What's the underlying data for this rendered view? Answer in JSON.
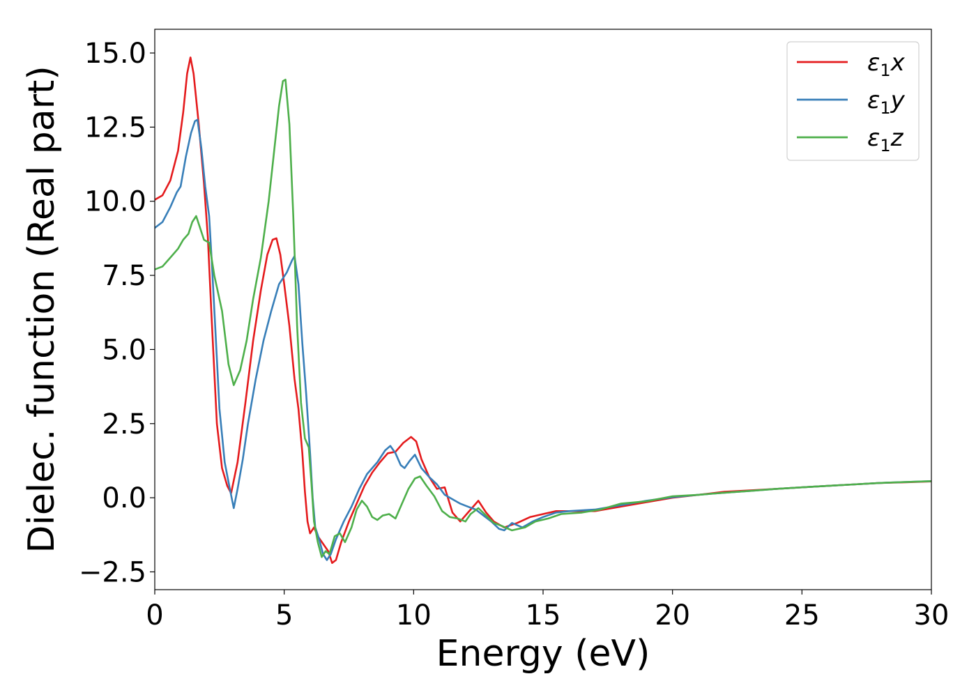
{
  "chart_data": {
    "type": "line",
    "xlabel": "Energy (eV)",
    "ylabel": "Dielec. function (Real part)",
    "xlim": [
      0,
      30
    ],
    "ylim": [
      -3.1,
      15.8
    ],
    "x_ticks": [
      {
        "value": 0,
        "label": "0"
      },
      {
        "value": 5,
        "label": "5"
      },
      {
        "value": 10,
        "label": "10"
      },
      {
        "value": 15,
        "label": "15"
      },
      {
        "value": 20,
        "label": "20"
      },
      {
        "value": 25,
        "label": "25"
      },
      {
        "value": 30,
        "label": "30"
      }
    ],
    "y_ticks": [
      {
        "value": -2.5,
        "label": "−2.5"
      },
      {
        "value": 0,
        "label": "0.0"
      },
      {
        "value": 2.5,
        "label": "2.5"
      },
      {
        "value": 5,
        "label": "5.0"
      },
      {
        "value": 7.5,
        "label": "7.5"
      },
      {
        "value": 10,
        "label": "10.0"
      },
      {
        "value": 12.5,
        "label": "12.5"
      },
      {
        "value": 15,
        "label": "15.0"
      }
    ],
    "grid": false,
    "legend_position": "top-right",
    "series": [
      {
        "name": "ε1x",
        "legend_main": "ε",
        "legend_sub": "1",
        "legend_tail": "x",
        "color": "#e41a1c",
        "points": [
          [
            0,
            10.05
          ],
          [
            0.3,
            10.2
          ],
          [
            0.6,
            10.7
          ],
          [
            0.9,
            11.7
          ],
          [
            1.1,
            13.0
          ],
          [
            1.25,
            14.3
          ],
          [
            1.38,
            14.85
          ],
          [
            1.5,
            14.3
          ],
          [
            1.7,
            12.6
          ],
          [
            1.9,
            10.6
          ],
          [
            2.05,
            8.8
          ],
          [
            2.2,
            6.0
          ],
          [
            2.4,
            2.5
          ],
          [
            2.6,
            1.0
          ],
          [
            2.8,
            0.4
          ],
          [
            2.95,
            0.15
          ],
          [
            3.2,
            1.2
          ],
          [
            3.5,
            3.2
          ],
          [
            3.8,
            5.3
          ],
          [
            4.1,
            7.0
          ],
          [
            4.35,
            8.2
          ],
          [
            4.55,
            8.7
          ],
          [
            4.7,
            8.75
          ],
          [
            4.85,
            8.2
          ],
          [
            5.0,
            7.2
          ],
          [
            5.2,
            5.8
          ],
          [
            5.4,
            4.0
          ],
          [
            5.55,
            3.0
          ],
          [
            5.7,
            1.5
          ],
          [
            5.8,
            0.2
          ],
          [
            5.9,
            -0.8
          ],
          [
            6.0,
            -1.2
          ],
          [
            6.15,
            -1.0
          ],
          [
            6.3,
            -1.3
          ],
          [
            6.5,
            -1.55
          ],
          [
            6.7,
            -1.8
          ],
          [
            6.85,
            -2.2
          ],
          [
            7.0,
            -2.1
          ],
          [
            7.2,
            -1.5
          ],
          [
            7.5,
            -0.8
          ],
          [
            7.8,
            -0.2
          ],
          [
            8.1,
            0.4
          ],
          [
            8.4,
            0.85
          ],
          [
            8.7,
            1.2
          ],
          [
            9.0,
            1.5
          ],
          [
            9.3,
            1.55
          ],
          [
            9.6,
            1.85
          ],
          [
            9.9,
            2.05
          ],
          [
            10.1,
            1.9
          ],
          [
            10.3,
            1.3
          ],
          [
            10.6,
            0.7
          ],
          [
            10.9,
            0.3
          ],
          [
            11.2,
            0.35
          ],
          [
            11.5,
            -0.5
          ],
          [
            11.8,
            -0.8
          ],
          [
            12.1,
            -0.5
          ],
          [
            12.5,
            -0.1
          ],
          [
            12.8,
            -0.5
          ],
          [
            13.1,
            -0.8
          ],
          [
            13.5,
            -1.0
          ],
          [
            14.0,
            -0.85
          ],
          [
            14.5,
            -0.65
          ],
          [
            15.0,
            -0.55
          ],
          [
            15.5,
            -0.45
          ],
          [
            16.0,
            -0.45
          ],
          [
            17.0,
            -0.45
          ],
          [
            18.0,
            -0.3
          ],
          [
            19.0,
            -0.15
          ],
          [
            20.0,
            0.0
          ],
          [
            21.0,
            0.1
          ],
          [
            22.0,
            0.2
          ],
          [
            23.0,
            0.25
          ],
          [
            24.0,
            0.3
          ],
          [
            25.0,
            0.35
          ],
          [
            26.0,
            0.4
          ],
          [
            27.0,
            0.45
          ],
          [
            28.0,
            0.5
          ],
          [
            29.0,
            0.52
          ],
          [
            30.0,
            0.55
          ]
        ]
      },
      {
        "name": "ε1y",
        "legend_main": "ε",
        "legend_sub": "1",
        "legend_tail": "y",
        "color": "#377eb8",
        "points": [
          [
            0,
            9.1
          ],
          [
            0.3,
            9.3
          ],
          [
            0.6,
            9.8
          ],
          [
            0.85,
            10.3
          ],
          [
            1.0,
            10.5
          ],
          [
            1.2,
            11.5
          ],
          [
            1.4,
            12.3
          ],
          [
            1.55,
            12.7
          ],
          [
            1.65,
            12.75
          ],
          [
            1.8,
            11.8
          ],
          [
            1.95,
            10.5
          ],
          [
            2.1,
            9.5
          ],
          [
            2.2,
            8.0
          ],
          [
            2.35,
            5.5
          ],
          [
            2.5,
            3.0
          ],
          [
            2.7,
            1.2
          ],
          [
            2.9,
            0.3
          ],
          [
            3.05,
            -0.35
          ],
          [
            3.2,
            0.3
          ],
          [
            3.4,
            1.3
          ],
          [
            3.6,
            2.5
          ],
          [
            3.9,
            4.0
          ],
          [
            4.2,
            5.3
          ],
          [
            4.5,
            6.3
          ],
          [
            4.8,
            7.2
          ],
          [
            5.1,
            7.6
          ],
          [
            5.3,
            8.0
          ],
          [
            5.4,
            8.15
          ],
          [
            5.55,
            7.2
          ],
          [
            5.7,
            5.2
          ],
          [
            5.85,
            3.5
          ],
          [
            6.0,
            1.5
          ],
          [
            6.1,
            0.0
          ],
          [
            6.2,
            -1.0
          ],
          [
            6.35,
            -1.4
          ],
          [
            6.5,
            -1.9
          ],
          [
            6.65,
            -2.1
          ],
          [
            6.8,
            -1.9
          ],
          [
            7.0,
            -1.4
          ],
          [
            7.3,
            -0.8
          ],
          [
            7.6,
            -0.3
          ],
          [
            7.9,
            0.3
          ],
          [
            8.2,
            0.8
          ],
          [
            8.6,
            1.2
          ],
          [
            8.9,
            1.6
          ],
          [
            9.1,
            1.75
          ],
          [
            9.3,
            1.5
          ],
          [
            9.5,
            1.1
          ],
          [
            9.65,
            1.0
          ],
          [
            9.85,
            1.25
          ],
          [
            10.05,
            1.45
          ],
          [
            10.3,
            1.0
          ],
          [
            10.6,
            0.7
          ],
          [
            10.9,
            0.45
          ],
          [
            11.2,
            0.1
          ],
          [
            11.5,
            -0.05
          ],
          [
            11.8,
            -0.2
          ],
          [
            12.1,
            -0.3
          ],
          [
            12.4,
            -0.4
          ],
          [
            12.7,
            -0.6
          ],
          [
            13.0,
            -0.8
          ],
          [
            13.3,
            -1.05
          ],
          [
            13.5,
            -1.1
          ],
          [
            13.8,
            -0.85
          ],
          [
            14.2,
            -1.0
          ],
          [
            14.6,
            -0.8
          ],
          [
            15.0,
            -0.65
          ],
          [
            15.5,
            -0.5
          ],
          [
            16.0,
            -0.45
          ],
          [
            17.0,
            -0.4
          ],
          [
            18.0,
            -0.25
          ],
          [
            19.0,
            -0.1
          ],
          [
            20.0,
            0.02
          ],
          [
            21.0,
            0.1
          ],
          [
            22.0,
            0.17
          ],
          [
            23.0,
            0.23
          ],
          [
            24.0,
            0.3
          ],
          [
            25.0,
            0.35
          ],
          [
            26.0,
            0.4
          ],
          [
            27.0,
            0.45
          ],
          [
            28.0,
            0.5
          ],
          [
            29.0,
            0.53
          ],
          [
            30.0,
            0.56
          ]
        ]
      },
      {
        "name": "ε1z",
        "legend_main": "ε",
        "legend_sub": "1",
        "legend_tail": "z",
        "color": "#4daf4a",
        "points": [
          [
            0,
            7.7
          ],
          [
            0.3,
            7.8
          ],
          [
            0.6,
            8.1
          ],
          [
            0.9,
            8.4
          ],
          [
            1.1,
            8.7
          ],
          [
            1.3,
            8.9
          ],
          [
            1.45,
            9.3
          ],
          [
            1.6,
            9.5
          ],
          [
            1.75,
            9.1
          ],
          [
            1.9,
            8.7
          ],
          [
            2.1,
            8.6
          ],
          [
            2.3,
            7.5
          ],
          [
            2.6,
            6.3
          ],
          [
            2.85,
            4.5
          ],
          [
            3.05,
            3.8
          ],
          [
            3.3,
            4.3
          ],
          [
            3.55,
            5.3
          ],
          [
            3.8,
            6.7
          ],
          [
            4.1,
            8.1
          ],
          [
            4.4,
            10.0
          ],
          [
            4.6,
            11.6
          ],
          [
            4.8,
            13.2
          ],
          [
            4.95,
            14.05
          ],
          [
            5.05,
            14.1
          ],
          [
            5.2,
            12.6
          ],
          [
            5.35,
            9.5
          ],
          [
            5.5,
            5.8
          ],
          [
            5.65,
            3.2
          ],
          [
            5.8,
            2.0
          ],
          [
            5.95,
            1.7
          ],
          [
            6.05,
            0.5
          ],
          [
            6.15,
            -0.8
          ],
          [
            6.3,
            -1.5
          ],
          [
            6.45,
            -2.0
          ],
          [
            6.6,
            -1.8
          ],
          [
            6.75,
            -1.9
          ],
          [
            6.95,
            -1.3
          ],
          [
            7.15,
            -1.2
          ],
          [
            7.35,
            -1.5
          ],
          [
            7.6,
            -1.0
          ],
          [
            7.8,
            -0.4
          ],
          [
            8.0,
            -0.1
          ],
          [
            8.2,
            -0.3
          ],
          [
            8.4,
            -0.65
          ],
          [
            8.6,
            -0.75
          ],
          [
            8.8,
            -0.6
          ],
          [
            9.05,
            -0.55
          ],
          [
            9.3,
            -0.7
          ],
          [
            9.55,
            -0.2
          ],
          [
            9.8,
            0.3
          ],
          [
            10.05,
            0.65
          ],
          [
            10.25,
            0.72
          ],
          [
            10.5,
            0.4
          ],
          [
            10.8,
            0.05
          ],
          [
            11.1,
            -0.45
          ],
          [
            11.4,
            -0.65
          ],
          [
            11.7,
            -0.7
          ],
          [
            12.0,
            -0.8
          ],
          [
            12.2,
            -0.55
          ],
          [
            12.5,
            -0.35
          ],
          [
            12.8,
            -0.6
          ],
          [
            13.1,
            -0.85
          ],
          [
            13.4,
            -0.95
          ],
          [
            13.8,
            -1.1
          ],
          [
            14.3,
            -1.0
          ],
          [
            14.7,
            -0.8
          ],
          [
            15.2,
            -0.7
          ],
          [
            15.7,
            -0.55
          ],
          [
            16.5,
            -0.5
          ],
          [
            17.2,
            -0.4
          ],
          [
            18.0,
            -0.2
          ],
          [
            19.0,
            -0.12
          ],
          [
            20.0,
            0.05
          ],
          [
            21.0,
            0.1
          ],
          [
            22.0,
            0.17
          ],
          [
            23.0,
            0.23
          ],
          [
            24.0,
            0.3
          ],
          [
            25.0,
            0.35
          ],
          [
            26.0,
            0.4
          ],
          [
            27.0,
            0.45
          ],
          [
            28.0,
            0.5
          ],
          [
            29.0,
            0.53
          ],
          [
            30.0,
            0.56
          ]
        ]
      }
    ]
  }
}
